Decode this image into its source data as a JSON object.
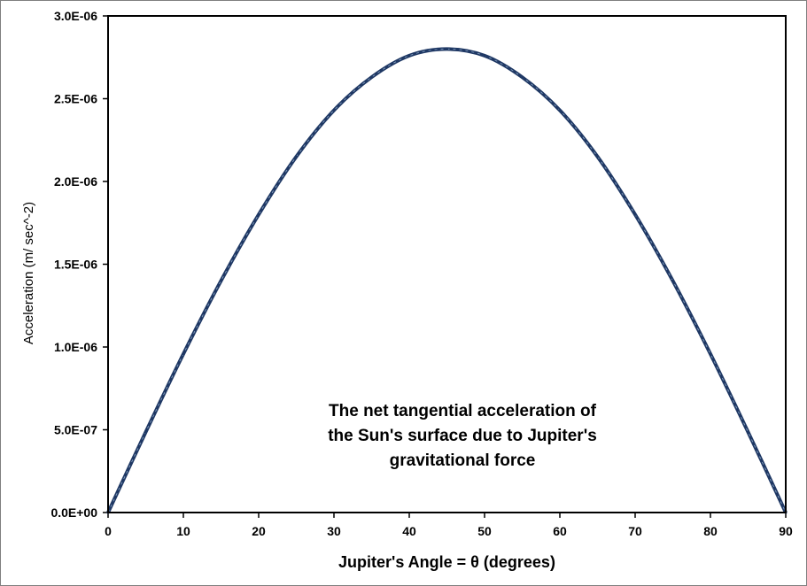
{
  "chart_data": {
    "type": "line",
    "title": "",
    "xlabel": "Jupiter's Angle = θ (degrees)",
    "ylabel": "Acceleration (m/ sec^-2)",
    "xlim": [
      0,
      90
    ],
    "ylim": [
      0,
      3e-06
    ],
    "x_ticks": [
      0,
      10,
      20,
      30,
      40,
      50,
      60,
      70,
      80,
      90
    ],
    "x_tick_labels": [
      "0",
      "10",
      "20",
      "30",
      "40",
      "50",
      "60",
      "70",
      "80",
      "90"
    ],
    "y_ticks": [
      0,
      5e-07,
      1e-06,
      1.5e-06,
      2e-06,
      2.5e-06,
      3e-06
    ],
    "y_tick_labels": [
      "0.0E+00",
      "5.0E-07",
      "1.0E-06",
      "1.5E-06",
      "2.0E-06",
      "2.5E-06",
      "3.0E-06"
    ],
    "grid": false,
    "legend": "none",
    "series": [
      {
        "color": "#1f3864",
        "x": [
          0,
          5,
          10,
          15,
          20,
          25,
          30,
          35,
          40,
          45,
          50,
          55,
          60,
          65,
          70,
          75,
          80,
          85,
          90
        ],
        "y": [
          0,
          4.86e-07,
          9.58e-07,
          1.4e-06,
          1.8e-06,
          2.15e-06,
          2.43e-06,
          2.63e-06,
          2.76e-06,
          2.8e-06,
          2.76e-06,
          2.63e-06,
          2.43e-06,
          2.15e-06,
          1.8e-06,
          1.4e-06,
          9.58e-07,
          4.86e-07,
          0
        ]
      }
    ],
    "annotation": {
      "lines": [
        "The net tangential acceleration of",
        "the Sun's surface due to Jupiter's",
        "gravitational force"
      ]
    }
  }
}
